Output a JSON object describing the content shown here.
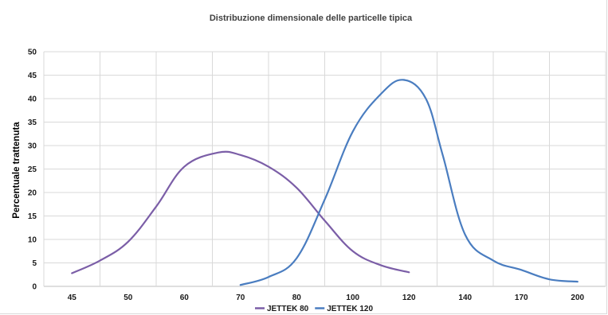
{
  "chart_data": {
    "type": "line",
    "title": "Distribuzione dimensionale delle particelle tipica",
    "xlabel": "",
    "ylabel": "Percentuale trattenuta",
    "categories": [
      "45",
      "50",
      "60",
      "70",
      "80",
      "100",
      "120",
      "140",
      "170",
      "200"
    ],
    "ylim": [
      0,
      50
    ],
    "yticks": [
      "0",
      "5",
      "10",
      "15",
      "20",
      "25",
      "30",
      "35",
      "40",
      "45",
      "50"
    ],
    "grid": true,
    "legend_position": "bottom",
    "series": [
      {
        "name": "JETTEK 80",
        "color": "#7b5ea7",
        "x": [
          0,
          0.5,
          1,
          1.5,
          2,
          2.6,
          3,
          3.5,
          4,
          4.5,
          5,
          5.5,
          6
        ],
        "y": [
          2.8,
          5.5,
          9.5,
          17,
          25.5,
          28.5,
          28,
          25.5,
          21,
          14,
          7.5,
          4.5,
          3
        ]
      },
      {
        "name": "JETTEK 120",
        "color": "#4a7dc0",
        "x": [
          3,
          3.5,
          4,
          4.5,
          5,
          5.5,
          5.9,
          6.3,
          6.6,
          7,
          7.5,
          8,
          8.5,
          9
        ],
        "y": [
          0.3,
          2,
          6,
          18.5,
          33,
          41,
          44,
          40,
          28,
          11,
          5.5,
          3.5,
          1.5,
          1
        ]
      }
    ]
  }
}
